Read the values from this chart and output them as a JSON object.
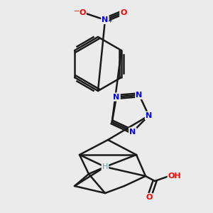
{
  "background_color": "#ebebeb",
  "atom_colors": {
    "N": "#0000ff",
    "O": "#ff0000",
    "H_ad": "#5f9ea0"
  },
  "bond_color": "#1a1a1a",
  "bond_width": 1.8
}
